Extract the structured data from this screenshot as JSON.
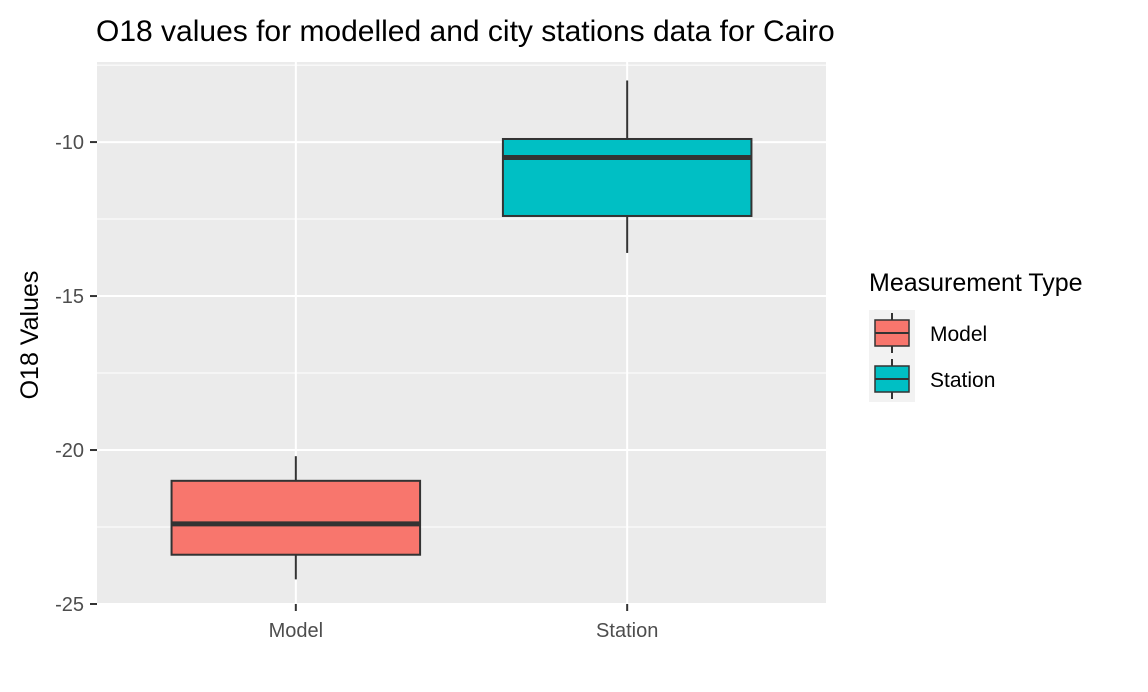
{
  "chart_data": {
    "type": "boxplot",
    "title": "O18 values for modelled and city stations data for Cairo",
    "xlabel": "",
    "ylabel": "O18 Values",
    "categories": [
      "Model",
      "Station"
    ],
    "ylim": [
      -25.0,
      -7.4
    ],
    "yticks": [
      -25,
      -20,
      -15,
      -10
    ],
    "y_tick_labels": [
      "-25",
      "-20",
      "-15",
      "-10"
    ],
    "grid": true,
    "boxes": [
      {
        "category": "Model",
        "whisker_low": -24.2,
        "q1": -23.4,
        "median": -22.4,
        "q3": -21.0,
        "whisker_high": -20.2,
        "fill": "#F8766D"
      },
      {
        "category": "Station",
        "whisker_low": -13.6,
        "q1": -12.4,
        "median": -10.5,
        "q3": -9.9,
        "whisker_high": -8.0,
        "fill": "#00BFC4"
      }
    ],
    "legend": {
      "title": "Measurement Type",
      "position": "right",
      "entries": [
        {
          "label": "Model",
          "color": "#F8766D"
        },
        {
          "label": "Station",
          "color": "#00BFC4"
        }
      ]
    },
    "colors": {
      "panel_background": "#EBEBEB",
      "grid_line": "#FFFFFF",
      "box_outline": "#333333"
    }
  }
}
